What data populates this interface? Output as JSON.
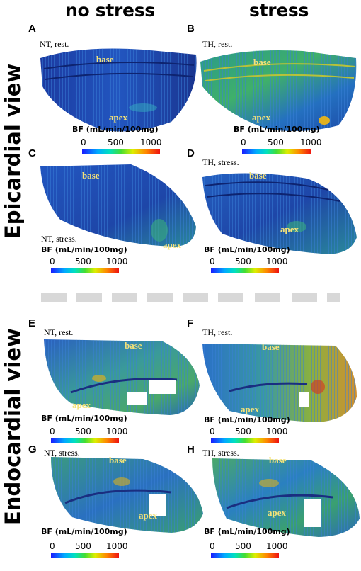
{
  "columns": {
    "left": "no stress",
    "right": "stress"
  },
  "sides": {
    "top": "Epicardial view",
    "bottom": "Endocardial view"
  },
  "panels": [
    {
      "label": "A",
      "condition": "NT, rest.",
      "base": "base",
      "apex": "apex",
      "bf_label": "BF (mL/min/100mg)",
      "ticks": [
        "0",
        "500",
        "1000"
      ]
    },
    {
      "label": "B",
      "condition": "TH, rest.",
      "base": "base",
      "apex": "apex",
      "bf_label": "BF (mL/min/100mg)",
      "ticks": [
        "0",
        "500",
        "1000"
      ]
    },
    {
      "label": "C",
      "condition": "NT, stress.",
      "base": "base",
      "apex": "apex",
      "bf_label": "BF (mL/min/100mg)",
      "ticks": [
        "0",
        "500",
        "1000"
      ]
    },
    {
      "label": "D",
      "condition": "TH, stress.",
      "base": "base",
      "apex": "apex",
      "bf_label": "BF (mL/min/100mg)",
      "ticks": [
        "0",
        "500",
        "1000"
      ]
    },
    {
      "label": "E",
      "condition": "NT, rest.",
      "base": "base",
      "apex": "apex",
      "bf_label": "BF (mL/min/100mg)",
      "ticks": [
        "0",
        "500",
        "1000"
      ]
    },
    {
      "label": "F",
      "condition": "TH, rest.",
      "base": "base",
      "apex": "apex",
      "bf_label": "BF (mL/min/100mg)",
      "ticks": [
        "0",
        "500",
        "1000"
      ]
    },
    {
      "label": "G",
      "condition": "NT, stress.",
      "base": "base",
      "apex": "apex",
      "bf_label": "BF (mL/min/100mg)",
      "ticks": [
        "0",
        "500",
        "1000"
      ]
    },
    {
      "label": "H",
      "condition": "TH, stress.",
      "base": "base",
      "apex": "apex",
      "bf_label": "BF (mL/min/100mg)",
      "ticks": [
        "0",
        "500",
        "1000"
      ]
    }
  ],
  "colors": {
    "low_flow": "#1a3fa8",
    "mid_flow": "#2fa0a0",
    "high_flow": "#d8b020",
    "label_yellow": "#f4e27a"
  }
}
